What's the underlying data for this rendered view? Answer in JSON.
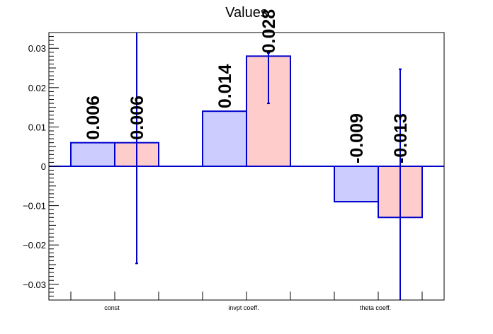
{
  "chart_data": {
    "type": "bar",
    "title": "Values",
    "xlabel": "",
    "ylabel": "",
    "ylim": [
      -0.034,
      0.034
    ],
    "yticks": [
      -0.03,
      -0.02,
      -0.01,
      0,
      0.01,
      0.02,
      0.03
    ],
    "ytick_labels": [
      "−0.03",
      "−0.02",
      "−0.01",
      "0",
      "0.01",
      "0.02",
      "0.03"
    ],
    "grid": false,
    "categories": [
      "const",
      "invpt coeff.",
      "theta coeff."
    ],
    "series": [
      {
        "color": "#ccccff",
        "edge_color": "#0000cc",
        "values": [
          0.006,
          0.014,
          -0.009
        ],
        "labels": [
          "0.006",
          "0.014",
          "-0.009"
        ],
        "errors": [
          null,
          null,
          null
        ]
      },
      {
        "color": "#ffcccc",
        "edge_color": "#0000cc",
        "values": [
          0.006,
          0.028,
          -0.013
        ],
        "labels": [
          "0.006",
          "0.028",
          "-0.013"
        ],
        "errors": [
          [
            -0.0247,
            0.034
          ],
          [
            0.016,
            0.0288
          ],
          [
            -0.034,
            0.0247
          ]
        ]
      }
    ]
  }
}
